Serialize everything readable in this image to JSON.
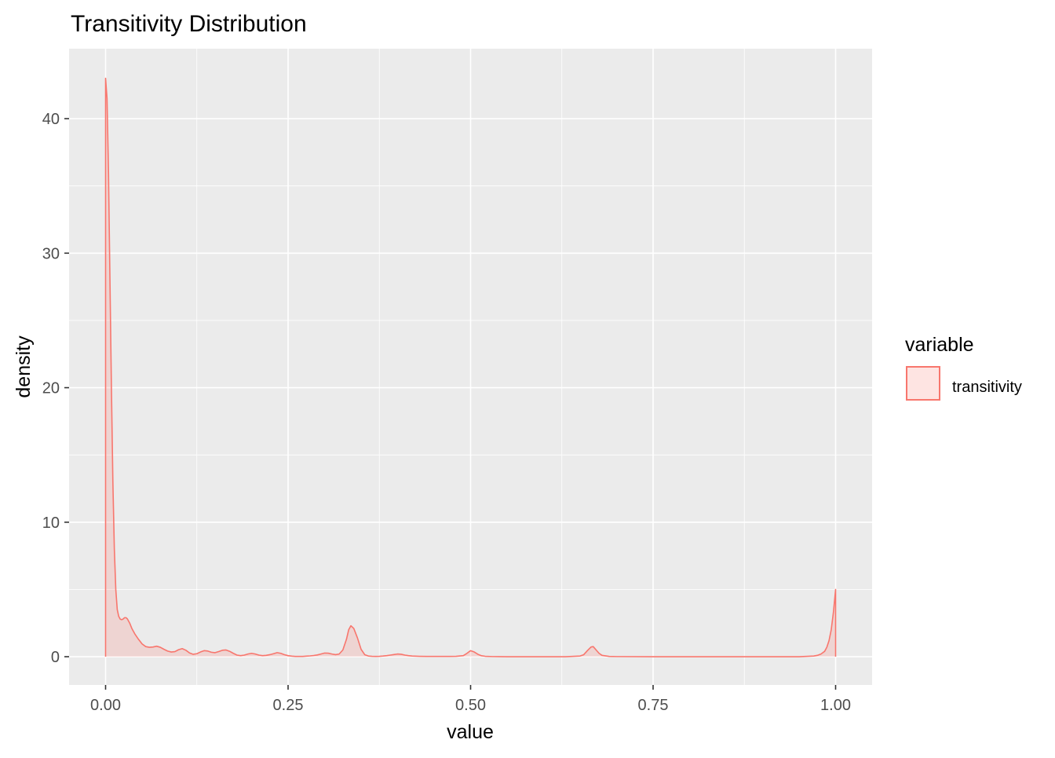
{
  "chart_data": {
    "type": "area",
    "title": "Transitivity Distribution",
    "xlabel": "value",
    "ylabel": "density",
    "xlim": [
      -0.05,
      1.05
    ],
    "ylim": [
      -2.1,
      45.2
    ],
    "x_ticks": [
      0.0,
      0.25,
      0.5,
      0.75,
      1.0
    ],
    "x_tick_labels": [
      "0.00",
      "0.25",
      "0.50",
      "0.75",
      "1.00"
    ],
    "y_ticks": [
      0,
      10,
      20,
      30,
      40
    ],
    "y_tick_labels": [
      "0",
      "10",
      "20",
      "30",
      "40"
    ],
    "grid": true,
    "legend": {
      "title": "variable",
      "position": "right"
    },
    "series": [
      {
        "name": "transitivity",
        "line_color": "#F8766D",
        "fill_color": "#F8766D",
        "fill_opacity": 0.2,
        "x": [
          0.0,
          0.002,
          0.004,
          0.006,
          0.008,
          0.01,
          0.012,
          0.014,
          0.016,
          0.018,
          0.02,
          0.022,
          0.024,
          0.026,
          0.028,
          0.03,
          0.033,
          0.036,
          0.04,
          0.045,
          0.05,
          0.055,
          0.06,
          0.065,
          0.07,
          0.075,
          0.08,
          0.085,
          0.09,
          0.095,
          0.1,
          0.105,
          0.11,
          0.115,
          0.12,
          0.125,
          0.13,
          0.135,
          0.14,
          0.145,
          0.15,
          0.155,
          0.16,
          0.165,
          0.17,
          0.175,
          0.18,
          0.185,
          0.19,
          0.195,
          0.2,
          0.205,
          0.21,
          0.215,
          0.22,
          0.225,
          0.23,
          0.235,
          0.24,
          0.245,
          0.25,
          0.255,
          0.26,
          0.265,
          0.27,
          0.275,
          0.28,
          0.285,
          0.29,
          0.295,
          0.3,
          0.305,
          0.31,
          0.315,
          0.32,
          0.325,
          0.33,
          0.333,
          0.336,
          0.34,
          0.345,
          0.35,
          0.355,
          0.36,
          0.365,
          0.37,
          0.375,
          0.38,
          0.385,
          0.39,
          0.395,
          0.4,
          0.405,
          0.41,
          0.415,
          0.42,
          0.43,
          0.44,
          0.45,
          0.46,
          0.47,
          0.48,
          0.49,
          0.495,
          0.5,
          0.505,
          0.51,
          0.515,
          0.52,
          0.53,
          0.55,
          0.6,
          0.63,
          0.65,
          0.655,
          0.66,
          0.665,
          0.668,
          0.672,
          0.676,
          0.68,
          0.69,
          0.7,
          0.75,
          0.8,
          0.85,
          0.9,
          0.95,
          0.97,
          0.975,
          0.98,
          0.985,
          0.988,
          0.991,
          0.994,
          0.997,
          1.0
        ],
        "y": [
          43.0,
          41.5,
          36.0,
          28.0,
          20.0,
          13.0,
          8.0,
          5.0,
          3.5,
          3.0,
          2.8,
          2.75,
          2.8,
          2.9,
          2.9,
          2.8,
          2.5,
          2.1,
          1.7,
          1.3,
          0.95,
          0.75,
          0.7,
          0.72,
          0.78,
          0.7,
          0.55,
          0.42,
          0.35,
          0.38,
          0.52,
          0.6,
          0.48,
          0.28,
          0.18,
          0.22,
          0.35,
          0.45,
          0.42,
          0.33,
          0.3,
          0.38,
          0.48,
          0.5,
          0.4,
          0.25,
          0.12,
          0.08,
          0.12,
          0.2,
          0.25,
          0.2,
          0.12,
          0.08,
          0.1,
          0.15,
          0.22,
          0.3,
          0.25,
          0.15,
          0.08,
          0.04,
          0.02,
          0.02,
          0.02,
          0.04,
          0.06,
          0.09,
          0.13,
          0.2,
          0.27,
          0.26,
          0.2,
          0.15,
          0.2,
          0.5,
          1.3,
          2.0,
          2.3,
          2.1,
          1.4,
          0.55,
          0.15,
          0.05,
          0.03,
          0.02,
          0.03,
          0.05,
          0.08,
          0.12,
          0.16,
          0.2,
          0.18,
          0.12,
          0.08,
          0.05,
          0.03,
          0.02,
          0.02,
          0.02,
          0.02,
          0.03,
          0.08,
          0.25,
          0.45,
          0.35,
          0.18,
          0.07,
          0.03,
          0.01,
          0.0,
          0.0,
          0.0,
          0.05,
          0.15,
          0.45,
          0.72,
          0.75,
          0.5,
          0.25,
          0.1,
          0.02,
          0.01,
          0.0,
          0.0,
          0.0,
          0.0,
          0.0,
          0.05,
          0.1,
          0.2,
          0.4,
          0.7,
          1.2,
          2.0,
          3.3,
          5.0
        ]
      }
    ]
  }
}
